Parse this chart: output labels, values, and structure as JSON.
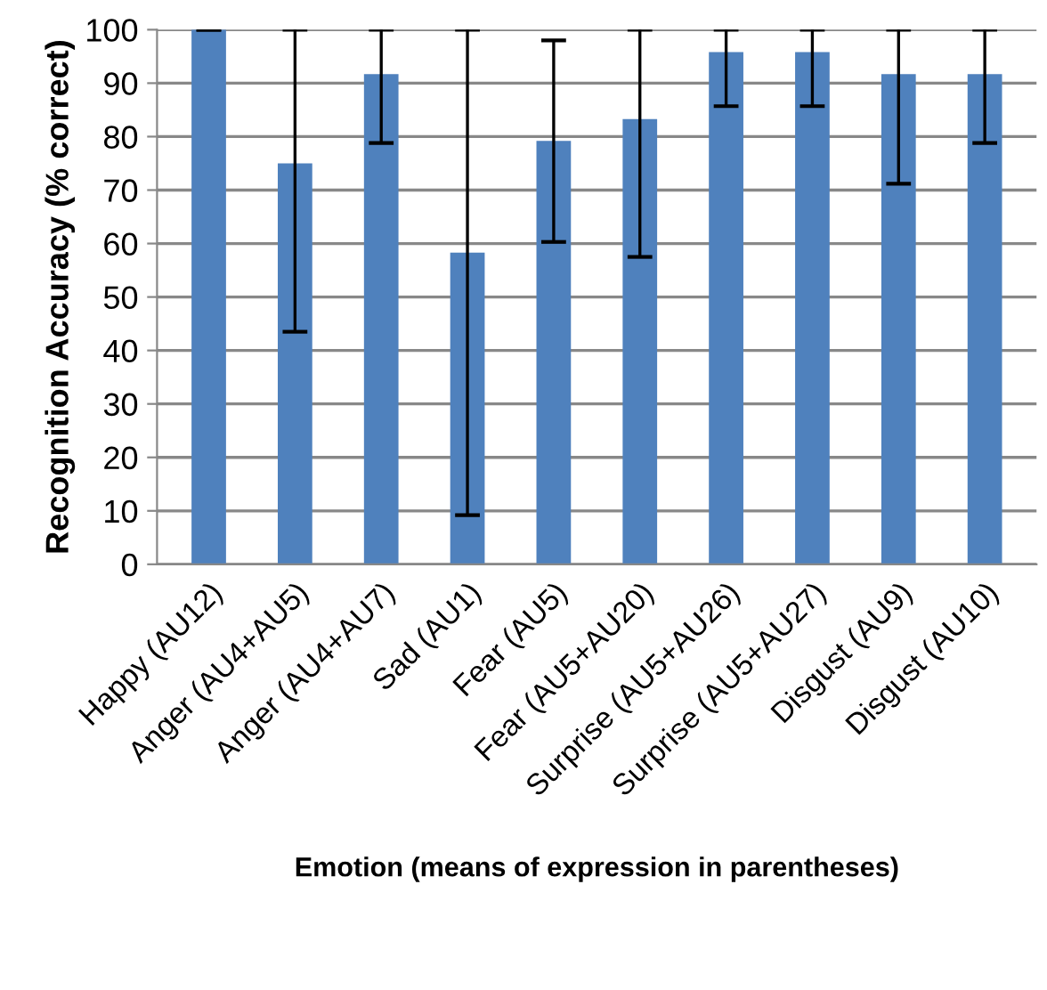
{
  "chart_data": {
    "type": "bar",
    "xlabel": "Emotion (means of expression in parentheses)",
    "ylabel": "Recognition Accuracy (% correct)",
    "categories": [
      "Happy (AU12)",
      "Anger (AU4+AU5)",
      "Anger (AU4+AU7)",
      "Sad (AU1)",
      "Fear (AU5)",
      "Fear (AU5+AU20)",
      "Surprise (AU5+AU26)",
      "Surprise (AU5+AU27)",
      "Disgust (AU9)",
      "Disgust (AU10)"
    ],
    "values": [
      100,
      75,
      91.7,
      58.3,
      79.2,
      83.3,
      95.8,
      95.8,
      91.7,
      91.7
    ],
    "errors": [
      [
        100,
        100
      ],
      [
        43.5,
        100
      ],
      [
        78.8,
        100
      ],
      [
        9.2,
        100
      ],
      [
        60.3,
        98
      ],
      [
        57.5,
        100
      ],
      [
        85.7,
        100
      ],
      [
        85.7,
        100
      ],
      [
        71.2,
        100
      ],
      [
        78.8,
        100
      ]
    ],
    "color": "#4f81bd",
    "ylim": [
      0,
      100
    ],
    "yticks": [
      0,
      10,
      20,
      30,
      40,
      50,
      60,
      70,
      80,
      90,
      100
    ],
    "grid": "y"
  }
}
